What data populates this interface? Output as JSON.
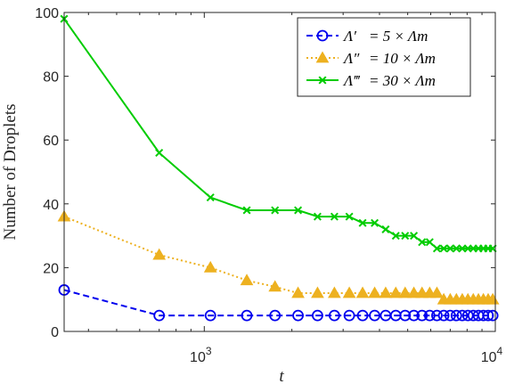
{
  "chart_data": {
    "type": "line",
    "xlabel": "t",
    "ylabel": "Number of Droplets",
    "x_scale": "log",
    "xlim": [
      330,
      10000
    ],
    "ylim": [
      0,
      100
    ],
    "x_ticks": [
      {
        "value": 1000,
        "base": "10",
        "exp": "3"
      },
      {
        "value": 10000,
        "base": "10",
        "exp": "4"
      }
    ],
    "y_ticks": [
      0,
      20,
      40,
      60,
      80,
      100
    ],
    "grid": false,
    "legend_position": "top-right",
    "series": [
      {
        "name": "Λ′ = 5 × Λm",
        "legend_lhs": "Λ′",
        "legend_rhs": "= 5 × Λm",
        "color": "#0000ee",
        "line_style": "dashed",
        "marker": "circle",
        "x": [
          330,
          700,
          1050,
          1400,
          1750,
          2100,
          2450,
          2800,
          3150,
          3500,
          3850,
          4200,
          4550,
          4900,
          5250,
          5600,
          5950,
          6300,
          6650,
          7000,
          7350,
          7700,
          8050,
          8400,
          8750,
          9100,
          9450,
          9800
        ],
        "y": [
          13,
          5,
          5,
          5,
          5,
          5,
          5,
          5,
          5,
          5,
          5,
          5,
          5,
          5,
          5,
          5,
          5,
          5,
          5,
          5,
          5,
          5,
          5,
          5,
          5,
          5,
          5,
          5
        ]
      },
      {
        "name": "Λ″ = 10 × Λm",
        "legend_lhs": "Λ″",
        "legend_rhs": "= 10 × Λm",
        "color": "#edb120",
        "line_style": "dotted",
        "marker": "triangle",
        "x": [
          330,
          700,
          1050,
          1400,
          1750,
          2100,
          2450,
          2800,
          3150,
          3500,
          3850,
          4200,
          4550,
          4900,
          5250,
          5600,
          5950,
          6300,
          6650,
          7000,
          7350,
          7700,
          8050,
          8400,
          8750,
          9100,
          9450,
          9800
        ],
        "y": [
          36,
          24,
          20,
          16,
          14,
          12,
          12,
          12,
          12,
          12,
          12,
          12,
          12,
          12,
          12,
          12,
          12,
          12,
          10,
          10,
          10,
          10,
          10,
          10,
          10,
          10,
          10,
          10
        ]
      },
      {
        "name": "Λ‴ = 30 × Λm",
        "legend_lhs": "Λ‴",
        "legend_rhs": "= 30 × Λm",
        "color": "#00cc00",
        "line_style": "solid",
        "marker": "x",
        "x": [
          330,
          700,
          1050,
          1400,
          1750,
          2100,
          2450,
          2800,
          3150,
          3500,
          3850,
          4200,
          4550,
          4900,
          5250,
          5600,
          5950,
          6300,
          6650,
          7000,
          7350,
          7700,
          8050,
          8400,
          8750,
          9100,
          9450,
          9800
        ],
        "y": [
          98,
          56,
          42,
          38,
          38,
          38,
          36,
          36,
          36,
          34,
          34,
          32,
          30,
          30,
          30,
          28,
          28,
          26,
          26,
          26,
          26,
          26,
          26,
          26,
          26,
          26,
          26,
          26
        ]
      }
    ]
  }
}
